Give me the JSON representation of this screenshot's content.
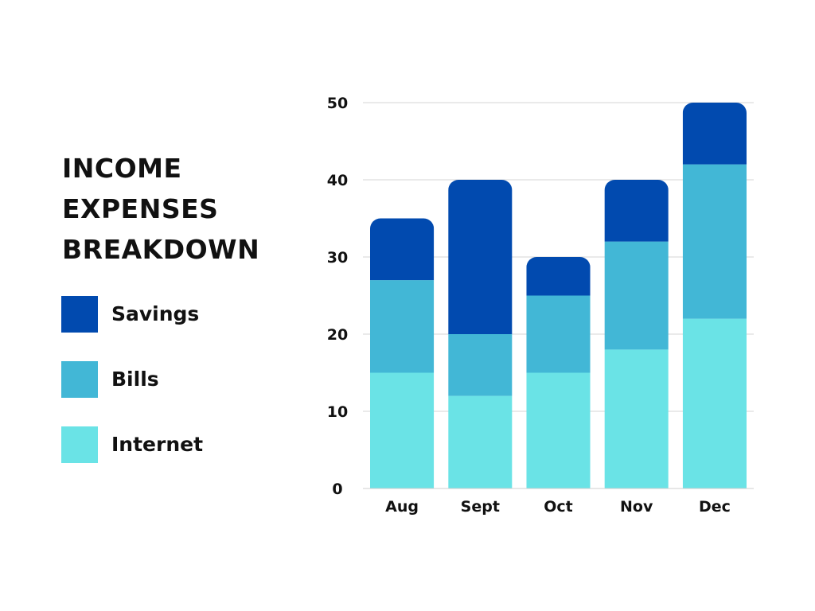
{
  "chart_data": {
    "type": "bar",
    "stacked": true,
    "title_lines": [
      "INCOME",
      "EXPENSES",
      "BREAKDOWN"
    ],
    "categories": [
      "Aug",
      "Sept",
      "Oct",
      "Nov",
      "Dec"
    ],
    "series": [
      {
        "name": "Internet",
        "color": "#6ae3e6",
        "values": [
          15,
          12,
          15,
          18,
          22
        ]
      },
      {
        "name": "Bills",
        "color": "#42b7d6",
        "values": [
          12,
          8,
          10,
          14,
          20
        ]
      },
      {
        "name": "Savings",
        "color": "#014aaf",
        "values": [
          8,
          20,
          5,
          8,
          8
        ]
      }
    ],
    "legend_order": [
      "Savings",
      "Bills",
      "Internet"
    ],
    "yticks": [
      0,
      10,
      20,
      30,
      40,
      50
    ],
    "ylim": [
      0,
      50
    ],
    "grid": true,
    "legend_position": "left"
  }
}
